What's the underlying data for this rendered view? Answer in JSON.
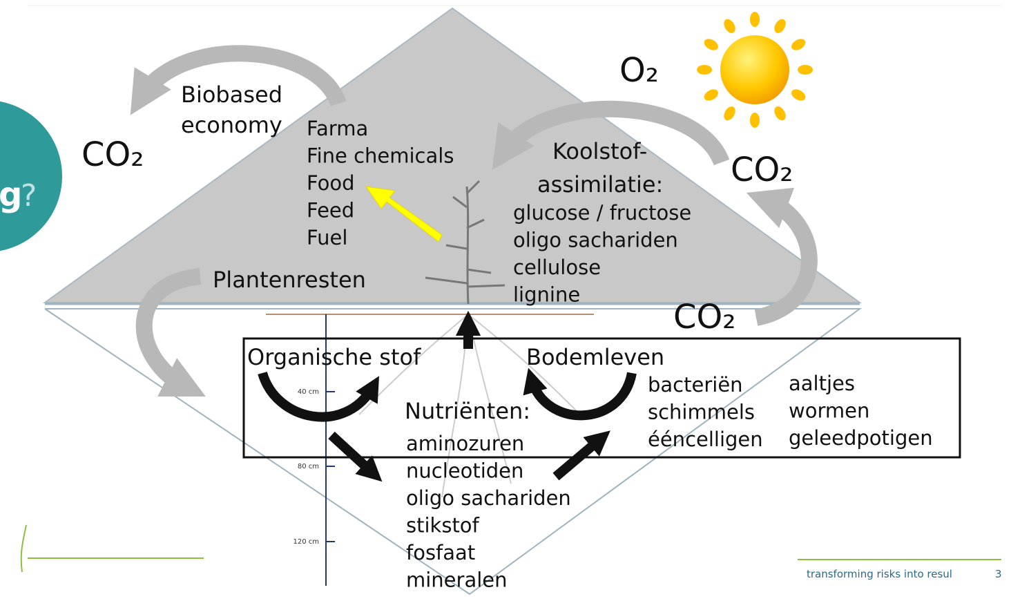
{
  "badge": {
    "text": "g",
    "mark": "?"
  },
  "biobased": {
    "line1": "Biobased",
    "line2": "economy"
  },
  "gases": {
    "co2_left": "CO₂",
    "o2": "O₂",
    "co2_right": "CO₂",
    "co2_bottom": "CO₂"
  },
  "products": [
    "Farma",
    "Fine chemicals",
    "Food",
    "Feed",
    "Fuel"
  ],
  "assimilation": {
    "title1": "Koolstof-",
    "title2": "assimilatie:",
    "items": [
      "glucose / fructose",
      "oligo sachariden",
      "cellulose",
      "lignine"
    ]
  },
  "plant_residues": "Plantenresten",
  "organic_matter": "Organische stof",
  "soil_life": {
    "title": "Bodemleven",
    "col1": [
      "bacteriën",
      "schimmels",
      "ééncelligen"
    ],
    "col2": [
      "aaltjes",
      "wormen",
      "geleedpotigen"
    ]
  },
  "nutrients": {
    "title": "Nutriënten:",
    "items": [
      "aminozuren",
      "nucleotiden",
      "oligo sachariden",
      "stikstof",
      "fosfaat",
      "mineralen"
    ]
  },
  "depths": [
    "40 cm",
    "80 cm",
    "120 cm"
  ],
  "footer": {
    "tagline": "transforming risks into resul",
    "page": "3"
  }
}
